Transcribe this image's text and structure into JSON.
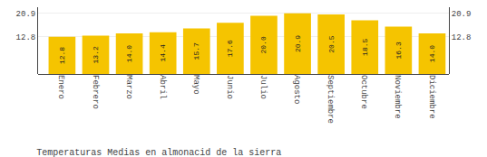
{
  "chart_data": {
    "type": "bar",
    "title": "Temperaturas Medias en almonacid de la sierra",
    "categories": [
      "Enero",
      "Febrero",
      "Marzo",
      "Abril",
      "Mayo",
      "Junio",
      "Julio",
      "Agosto",
      "Septiembre",
      "Octubre",
      "Noviembre",
      "Diciembre"
    ],
    "values": [
      12.8,
      13.2,
      14.0,
      14.4,
      15.7,
      17.6,
      20.0,
      20.9,
      20.5,
      18.5,
      16.3,
      14.0
    ],
    "value_labels": [
      "12.8",
      "13.2",
      "14.0",
      "14.4",
      "15.7",
      "17.6",
      "20.0",
      "20.9",
      "20.5",
      "18.5",
      "16.3",
      "14.0"
    ],
    "data_labels": true,
    "color": "#F5C400",
    "ylim": [
      0,
      22.99
    ],
    "yticks": [
      12.8,
      20.9
    ],
    "y2lim": [
      0,
      22.99
    ],
    "y2ticks": [
      12.8,
      20.9
    ],
    "grid": true
  }
}
